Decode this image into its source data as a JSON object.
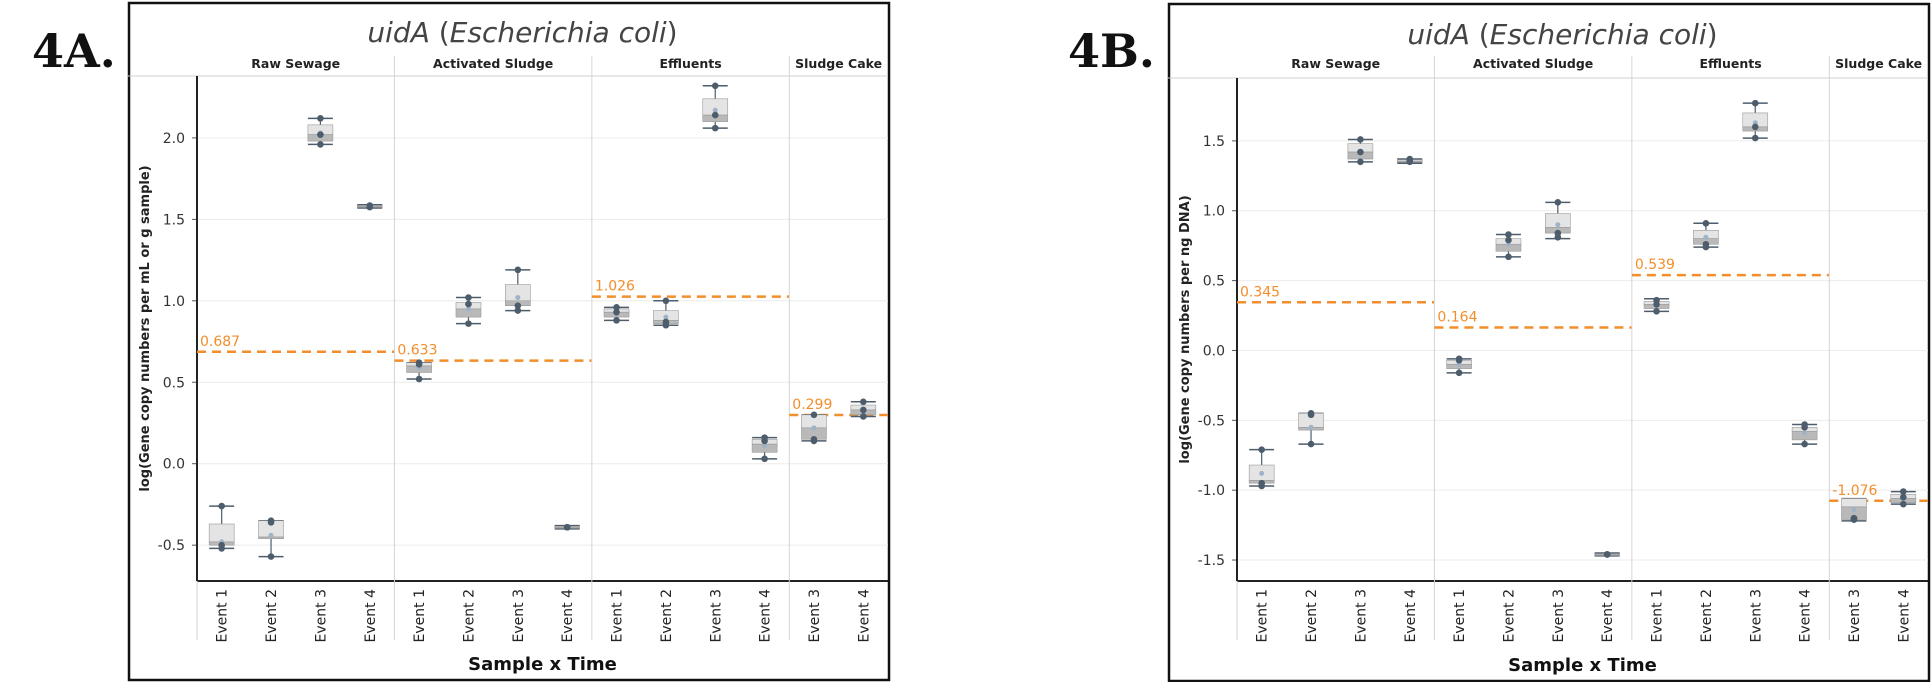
{
  "figure": {
    "panel_a_label": "4A.",
    "panel_b_label": "4B."
  },
  "chart_data": [
    {
      "panel": "4A.",
      "type": "box",
      "title_gene": "uidA",
      "title_organism": "Escherichia coli",
      "ylabel": "log(Gene copy numbers per mL or g sample)",
      "xlabel": "Sample x Time",
      "ylim": [
        -0.72,
        2.38
      ],
      "yticks": [
        -0.5,
        0.0,
        0.5,
        1.0,
        1.5,
        2.0
      ],
      "ytick_labels": [
        "-0.5",
        "0.0",
        "0.5",
        "1.0",
        "1.5",
        "2.0"
      ],
      "groups": [
        {
          "name": "Raw Sewage",
          "events": [
            "Event 1",
            "Event 2",
            "Event 3",
            "Event 4"
          ],
          "mean_line": 0.687,
          "mean_label": "0.687"
        },
        {
          "name": "Activated Sludge",
          "events": [
            "Event 1",
            "Event 2",
            "Event 3",
            "Event 4"
          ],
          "mean_line": 0.633,
          "mean_label": "0.633"
        },
        {
          "name": "Effluents",
          "events": [
            "Event 1",
            "Event 2",
            "Event 3",
            "Event 4"
          ],
          "mean_line": 1.026,
          "mean_label": "1.026"
        },
        {
          "name": "Sludge Cake",
          "events": [
            "Event 3",
            "Event 4"
          ],
          "mean_line": 0.299,
          "mean_label": "0.299"
        }
      ],
      "boxes": [
        {
          "group": "Raw Sewage",
          "event": "Event 1",
          "min": -0.52,
          "q1": -0.5,
          "median": -0.48,
          "q3": -0.37,
          "max": -0.26,
          "mean": -0.48,
          "points": [
            -0.52,
            -0.5,
            -0.26
          ]
        },
        {
          "group": "Raw Sewage",
          "event": "Event 2",
          "min": -0.57,
          "q1": -0.46,
          "median": -0.45,
          "q3": -0.35,
          "max": -0.35,
          "mean": -0.44,
          "points": [
            -0.57,
            -0.35,
            -0.36
          ]
        },
        {
          "group": "Raw Sewage",
          "event": "Event 3",
          "min": 1.96,
          "q1": 1.98,
          "median": 2.02,
          "q3": 2.08,
          "max": 2.12,
          "mean": 2.03,
          "points": [
            1.96,
            2.02,
            2.12
          ]
        },
        {
          "group": "Raw Sewage",
          "event": "Event 4",
          "min": 1.57,
          "q1": 1.575,
          "median": 1.58,
          "q3": 1.585,
          "max": 1.59,
          "mean": 1.58,
          "points": [
            1.575,
            1.58,
            1.585
          ]
        },
        {
          "group": "Activated Sludge",
          "event": "Event 1",
          "min": 0.52,
          "q1": 0.56,
          "median": 0.6,
          "q3": 0.62,
          "max": 0.62,
          "mean": 0.59,
          "points": [
            0.52,
            0.61,
            0.62
          ]
        },
        {
          "group": "Activated Sludge",
          "event": "Event 2",
          "min": 0.86,
          "q1": 0.9,
          "median": 0.95,
          "q3": 0.99,
          "max": 1.02,
          "mean": 0.95,
          "points": [
            0.86,
            0.98,
            1.02
          ]
        },
        {
          "group": "Activated Sludge",
          "event": "Event 3",
          "min": 0.94,
          "q1": 0.97,
          "median": 1.0,
          "q3": 1.1,
          "max": 1.19,
          "mean": 1.02,
          "points": [
            0.94,
            0.97,
            1.19
          ]
        },
        {
          "group": "Activated Sludge",
          "event": "Event 4",
          "min": -0.4,
          "q1": -0.395,
          "median": -0.39,
          "q3": -0.385,
          "max": -0.38,
          "mean": -0.39,
          "points": [
            -0.39,
            -0.39,
            -0.39
          ]
        },
        {
          "group": "Effluents",
          "event": "Event 1",
          "min": 0.88,
          "q1": 0.9,
          "median": 0.93,
          "q3": 0.95,
          "max": 0.96,
          "mean": 0.92,
          "points": [
            0.88,
            0.93,
            0.96
          ]
        },
        {
          "group": "Effluents",
          "event": "Event 2",
          "min": 0.85,
          "q1": 0.86,
          "median": 0.88,
          "q3": 0.94,
          "max": 1.0,
          "mean": 0.9,
          "points": [
            0.85,
            0.87,
            1.0
          ]
        },
        {
          "group": "Effluents",
          "event": "Event 3",
          "min": 2.06,
          "q1": 2.1,
          "median": 2.14,
          "q3": 2.24,
          "max": 2.32,
          "mean": 2.17,
          "points": [
            2.06,
            2.14,
            2.32
          ]
        },
        {
          "group": "Effluents",
          "event": "Event 4",
          "min": 0.03,
          "q1": 0.07,
          "median": 0.12,
          "q3": 0.15,
          "max": 0.16,
          "mean": 0.11,
          "points": [
            0.03,
            0.14,
            0.16
          ]
        },
        {
          "group": "Sludge Cake",
          "event": "Event 3",
          "min": 0.14,
          "q1": 0.15,
          "median": 0.22,
          "q3": 0.3,
          "max": 0.3,
          "mean": 0.22,
          "points": [
            0.14,
            0.15,
            0.3
          ]
        },
        {
          "group": "Sludge Cake",
          "event": "Event 4",
          "min": 0.29,
          "q1": 0.3,
          "median": 0.33,
          "q3": 0.36,
          "max": 0.38,
          "mean": 0.33,
          "points": [
            0.29,
            0.33,
            0.38
          ]
        }
      ]
    },
    {
      "panel": "4B.",
      "type": "box",
      "title_gene": "uidA",
      "title_organism": "Escherichia coli",
      "ylabel": "log(Gene copy numbers per ng DNA)",
      "xlabel": "Sample x Time",
      "ylim": [
        -1.65,
        1.95
      ],
      "yticks": [
        -1.5,
        -1.0,
        -0.5,
        0.0,
        0.5,
        1.0,
        1.5
      ],
      "ytick_labels": [
        "-1.5",
        "-1.0",
        "-0.5",
        "0.0",
        "0.5",
        "1.0",
        "1.5"
      ],
      "groups": [
        {
          "name": "Raw Sewage",
          "events": [
            "Event 1",
            "Event 2",
            "Event 3",
            "Event 4"
          ],
          "mean_line": 0.345,
          "mean_label": "0.345"
        },
        {
          "name": "Activated Sludge",
          "events": [
            "Event 1",
            "Event 2",
            "Event 3",
            "Event 4"
          ],
          "mean_line": 0.164,
          "mean_label": "0.164"
        },
        {
          "name": "Effluents",
          "events": [
            "Event 1",
            "Event 2",
            "Event 3",
            "Event 4"
          ],
          "mean_line": 0.539,
          "mean_label": "0.539"
        },
        {
          "name": "Sludge Cake",
          "events": [
            "Event 3",
            "Event 4"
          ],
          "mean_line": -1.076,
          "mean_label": "-1.076"
        }
      ],
      "boxes": [
        {
          "group": "Raw Sewage",
          "event": "Event 1",
          "min": -0.97,
          "q1": -0.95,
          "median": -0.93,
          "q3": -0.82,
          "max": -0.71,
          "mean": -0.88,
          "points": [
            -0.97,
            -0.95,
            -0.71
          ]
        },
        {
          "group": "Raw Sewage",
          "event": "Event 2",
          "min": -0.67,
          "q1": -0.57,
          "median": -0.55,
          "q3": -0.45,
          "max": -0.45,
          "mean": -0.55,
          "points": [
            -0.67,
            -0.45,
            -0.46
          ]
        },
        {
          "group": "Raw Sewage",
          "event": "Event 3",
          "min": 1.35,
          "q1": 1.37,
          "median": 1.42,
          "q3": 1.48,
          "max": 1.51,
          "mean": 1.42,
          "points": [
            1.35,
            1.42,
            1.51
          ]
        },
        {
          "group": "Raw Sewage",
          "event": "Event 4",
          "min": 1.34,
          "q1": 1.35,
          "median": 1.355,
          "q3": 1.365,
          "max": 1.37,
          "mean": 1.36,
          "points": [
            1.35,
            1.36,
            1.37
          ]
        },
        {
          "group": "Activated Sludge",
          "event": "Event 1",
          "min": -0.16,
          "q1": -0.13,
          "median": -0.1,
          "q3": -0.07,
          "max": -0.06,
          "mean": -0.1,
          "points": [
            -0.16,
            -0.07,
            -0.06
          ]
        },
        {
          "group": "Activated Sludge",
          "event": "Event 2",
          "min": 0.67,
          "q1": 0.71,
          "median": 0.76,
          "q3": 0.8,
          "max": 0.83,
          "mean": 0.76,
          "points": [
            0.67,
            0.79,
            0.83
          ]
        },
        {
          "group": "Activated Sludge",
          "event": "Event 3",
          "min": 0.8,
          "q1": 0.84,
          "median": 0.88,
          "q3": 0.98,
          "max": 1.06,
          "mean": 0.9,
          "points": [
            0.81,
            0.84,
            1.06
          ]
        },
        {
          "group": "Activated Sludge",
          "event": "Event 4",
          "min": -1.47,
          "q1": -1.465,
          "median": -1.46,
          "q3": -1.455,
          "max": -1.45,
          "mean": -1.46,
          "points": [
            -1.46,
            -1.46,
            -1.46
          ]
        },
        {
          "group": "Effluents",
          "event": "Event 1",
          "min": 0.28,
          "q1": 0.3,
          "median": 0.33,
          "q3": 0.35,
          "max": 0.37,
          "mean": 0.32,
          "points": [
            0.28,
            0.33,
            0.36
          ]
        },
        {
          "group": "Effluents",
          "event": "Event 2",
          "min": 0.74,
          "q1": 0.76,
          "median": 0.8,
          "q3": 0.86,
          "max": 0.91,
          "mean": 0.81,
          "points": [
            0.74,
            0.76,
            0.91
          ]
        },
        {
          "group": "Effluents",
          "event": "Event 3",
          "min": 1.52,
          "q1": 1.57,
          "median": 1.6,
          "q3": 1.7,
          "max": 1.77,
          "mean": 1.63,
          "points": [
            1.52,
            1.6,
            1.77
          ]
        },
        {
          "group": "Effluents",
          "event": "Event 4",
          "min": -0.67,
          "q1": -0.64,
          "median": -0.58,
          "q3": -0.55,
          "max": -0.53,
          "mean": -0.59,
          "points": [
            -0.67,
            -0.55,
            -0.53
          ]
        },
        {
          "group": "Sludge Cake",
          "event": "Event 3",
          "min": -1.22,
          "q1": -1.21,
          "median": -1.12,
          "q3": -1.06,
          "max": -1.06,
          "mean": -1.14,
          "points": [
            -1.21,
            -1.2,
            -1.21
          ]
        },
        {
          "group": "Sludge Cake",
          "event": "Event 4",
          "min": -1.1,
          "q1": -1.09,
          "median": -1.06,
          "q3": -1.03,
          "max": -1.01,
          "mean": -1.06,
          "points": [
            -1.1,
            -1.05,
            -1.01
          ]
        }
      ]
    }
  ],
  "colors": {
    "mean_line": "#f28e2b",
    "box_light": "#e4e4e4",
    "box_dark": "#b9b9b9",
    "whisker": "#4e5d6c",
    "point": "#4e5d6c",
    "grid": "#ececec",
    "divider": "#d4d4d4",
    "frame": "#111111"
  }
}
